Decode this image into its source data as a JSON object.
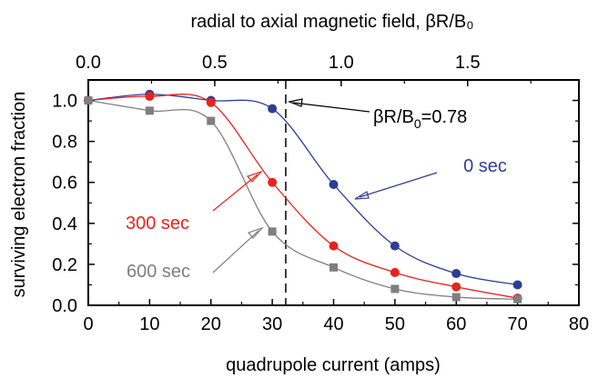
{
  "chart_data": {
    "type": "line",
    "title": "",
    "xlabel": "quadrupole current (amps)",
    "ylabel": "surviving electron fraction",
    "x2label": "radial to axial magnetic field, βR/B₀",
    "xlim": [
      0,
      80
    ],
    "ylim": [
      0,
      1.1
    ],
    "x2lim": [
      0,
      1.94
    ],
    "x_ticks": [
      "0",
      "10",
      "20",
      "30",
      "40",
      "50",
      "60",
      "70",
      "80"
    ],
    "y_ticks": [
      "0.0",
      "0.2",
      "0.4",
      "0.6",
      "0.8",
      "1.0"
    ],
    "x2_ticks": [
      "0.0",
      "0.5",
      "1.0",
      "1.5"
    ],
    "grid": false,
    "series": [
      {
        "name": "0 sec",
        "color": "#2e3d94",
        "marker": "circle",
        "x": [
          0,
          10,
          20,
          30,
          40,
          50,
          60,
          70
        ],
        "y": [
          1.0,
          1.03,
          1.0,
          0.96,
          0.59,
          0.29,
          0.155,
          0.1
        ]
      },
      {
        "name": "300 sec",
        "color": "#e8221e",
        "marker": "circle",
        "x": [
          0,
          10,
          20,
          30,
          40,
          50,
          60,
          70
        ],
        "y": [
          1.0,
          1.02,
          0.99,
          0.6,
          0.29,
          0.16,
          0.09,
          0.035
        ]
      },
      {
        "name": "600 sec",
        "color": "#7f7f7f",
        "marker": "square",
        "x": [
          0,
          10,
          20,
          30,
          40,
          50,
          60,
          70
        ],
        "y": [
          1.0,
          0.95,
          0.9,
          0.36,
          0.185,
          0.08,
          0.04,
          0.03
        ]
      }
    ],
    "vline": {
      "x": 32.2,
      "style": "dashed"
    },
    "annotations": {
      "vline_label_main": "βR/B",
      "vline_label_sub": "0",
      "vline_label_value": "=0.78"
    }
  }
}
